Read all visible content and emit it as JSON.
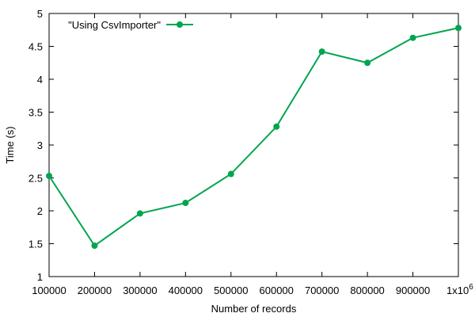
{
  "chart_data": {
    "type": "line",
    "xlabel": "Number of records",
    "ylabel": "Time (s)",
    "xlim": [
      100000,
      1000000
    ],
    "ylim": [
      1,
      5
    ],
    "x_ticks": [
      100000,
      200000,
      300000,
      400000,
      500000,
      600000,
      700000,
      800000,
      900000,
      1000000
    ],
    "x_tick_labels": [
      "100000",
      "200000",
      "300000",
      "400000",
      "500000",
      "600000",
      "700000",
      "800000",
      "900000",
      "1x10"
    ],
    "x_last_tick_exponent": "6",
    "y_ticks": [
      1,
      1.5,
      2,
      2.5,
      3,
      3.5,
      4,
      4.5,
      5
    ],
    "y_tick_labels": [
      "1",
      "1.5",
      "2",
      "2.5",
      "3",
      "3.5",
      "4",
      "4.5",
      "5"
    ],
    "grid": false,
    "legend_position": "top-left",
    "series": [
      {
        "name": "\"Using CsvImporter\"",
        "color": "#00a550",
        "x": [
          100000,
          200000,
          300000,
          400000,
          500000,
          600000,
          700000,
          800000,
          900000,
          1000000
        ],
        "y": [
          2.53,
          1.47,
          1.96,
          2.12,
          2.56,
          3.28,
          4.42,
          4.25,
          4.63,
          4.78
        ]
      }
    ]
  }
}
